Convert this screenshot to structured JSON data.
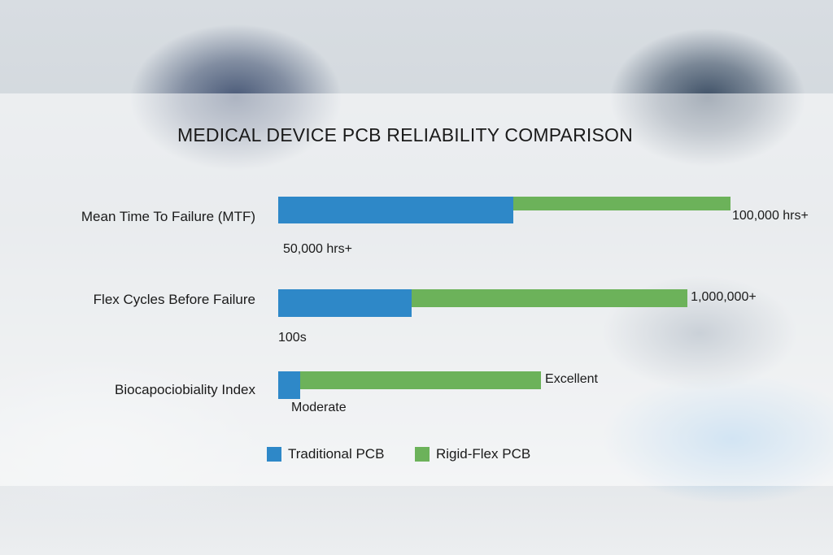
{
  "chart_data": {
    "type": "bar",
    "orientation": "horizontal",
    "stacked": true,
    "title": "MEDICAL DEVICE PCB RELIABILITY COMPARISON",
    "categories": [
      "Mean Time To Failure (MTF)",
      "Flex Cycles Before Failure",
      "Biocapociobiality Index"
    ],
    "series": [
      {
        "name": "Traditional PCB",
        "color": "#2e88c8",
        "values": [
          52,
          29.5,
          4.9
        ],
        "labels": [
          "50,000 hrs+",
          "100s",
          "Moderate"
        ]
      },
      {
        "name": "Rigid-Flex PCB",
        "color": "#6cb25a",
        "values": [
          48,
          61,
          53.2
        ],
        "labels": [
          "100,000 hrs+",
          "1,000,000+",
          "Excellent"
        ]
      }
    ],
    "value_units": "percent of longest bar (no axis printed)",
    "grid": false,
    "legend": "bottom"
  }
}
